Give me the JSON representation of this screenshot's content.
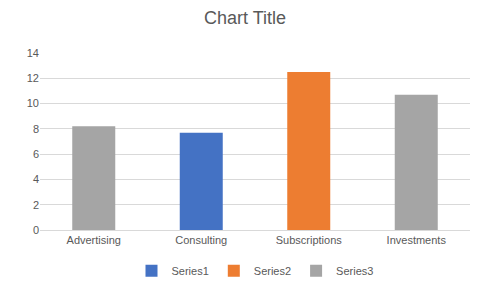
{
  "chart_data": {
    "type": "bar",
    "title": "Chart Title",
    "categories": [
      "Advertising",
      "Consulting",
      "Subscriptions",
      "Investments"
    ],
    "series": [
      {
        "name": "Series1",
        "color": "#4472c4",
        "values": [
          null,
          7.7,
          null,
          null
        ]
      },
      {
        "name": "Series2",
        "color": "#ed7d31",
        "values": [
          null,
          null,
          12.5,
          null
        ]
      },
      {
        "name": "Series3",
        "color": "#a5a5a5",
        "values": [
          8.2,
          null,
          null,
          10.7
        ]
      }
    ],
    "ylim": [
      0,
      14
    ],
    "yticks": [
      0,
      2,
      4,
      6,
      8,
      10,
      12,
      14
    ],
    "grid": true,
    "legend": "bottom"
  }
}
